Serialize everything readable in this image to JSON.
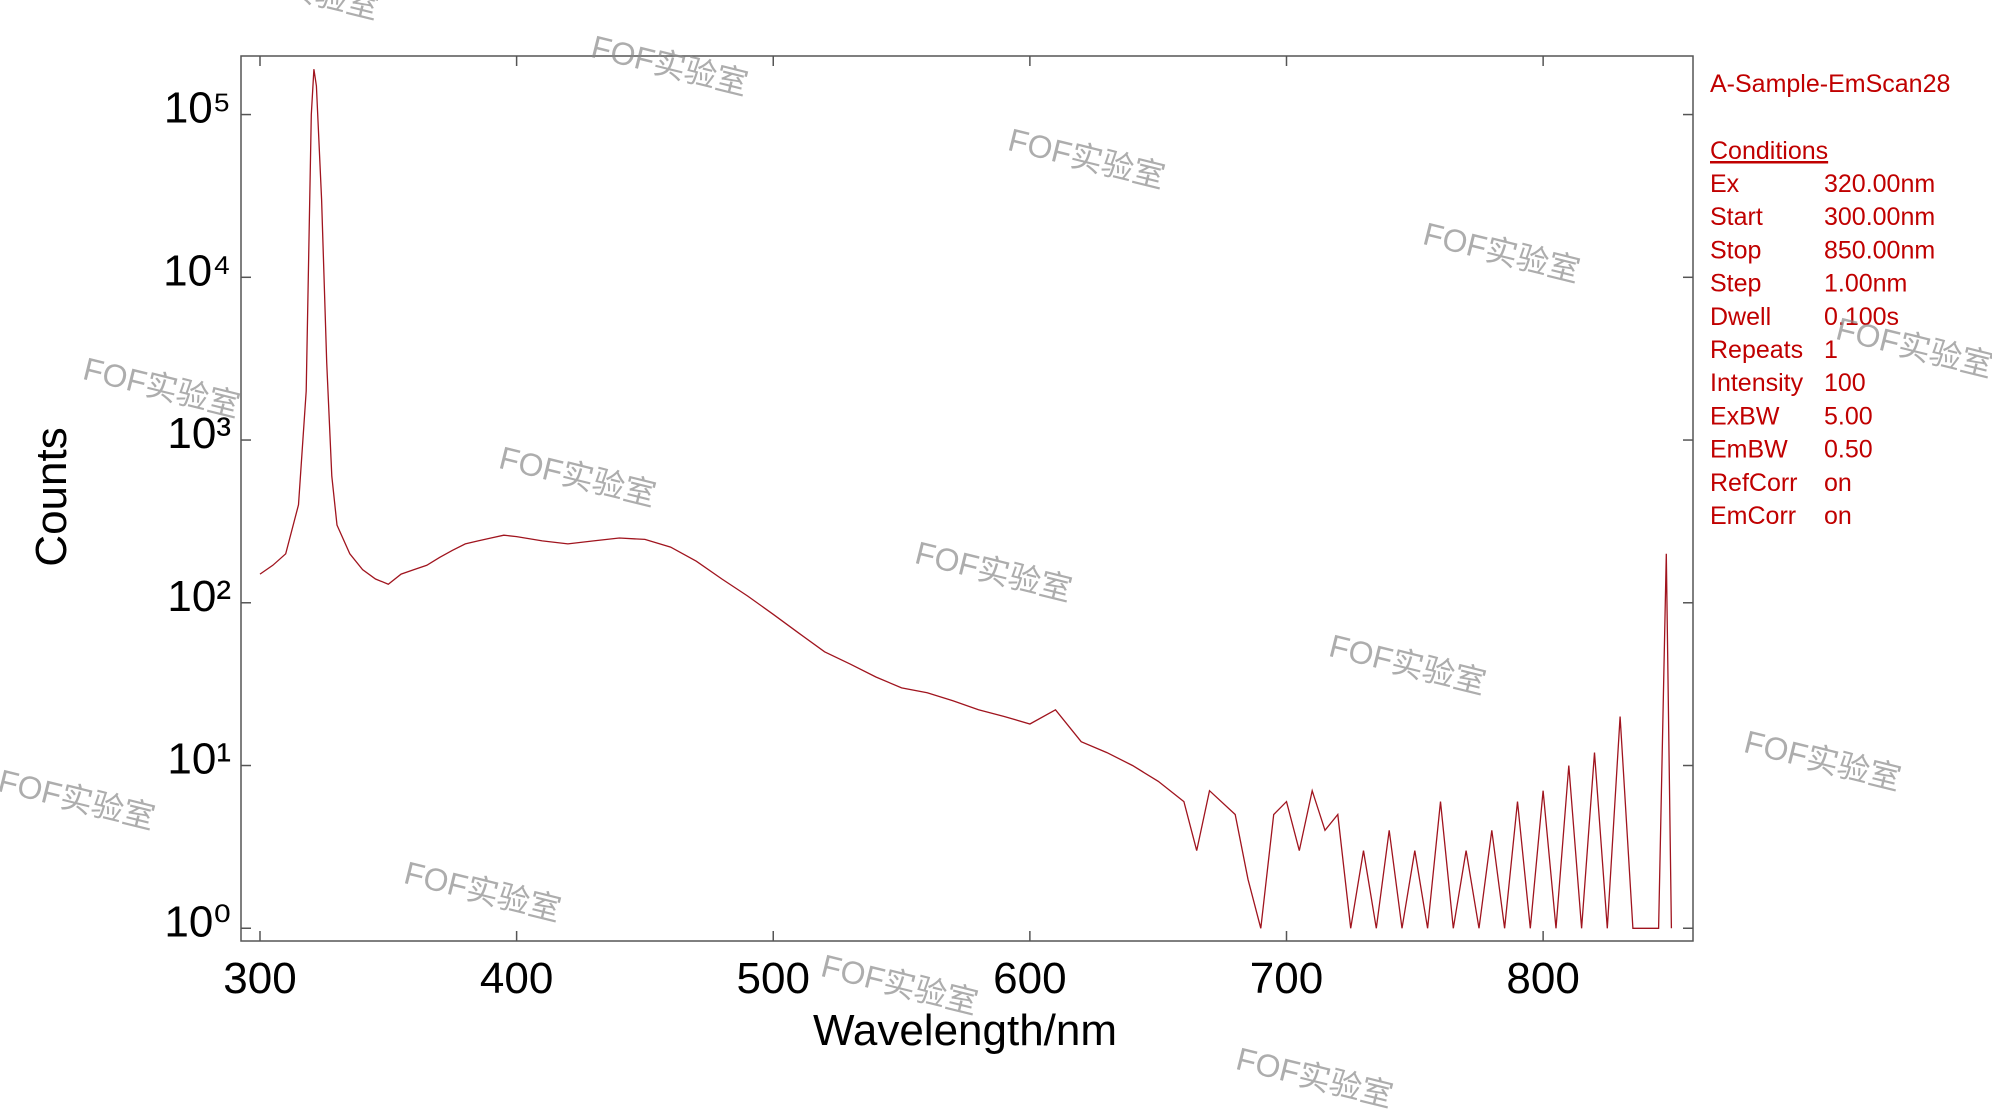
{
  "chart_data": {
    "type": "line",
    "xlabel": "Wavelength/nm",
    "ylabel": "Counts",
    "color": "#a0141e",
    "log_y": true,
    "xlim": [
      292.6,
      858.4
    ],
    "xticks": [
      300,
      400,
      500,
      600,
      700,
      800
    ],
    "ylim": [
      0.835,
      229000
    ],
    "yticks": [
      {
        "value": 1,
        "label": "10⁰"
      },
      {
        "value": 10,
        "label": "10¹"
      },
      {
        "value": 100,
        "label": "10²"
      },
      {
        "value": 1000,
        "label": "10³"
      },
      {
        "value": 10000,
        "label": "10⁴"
      },
      {
        "value": 100000,
        "label": "10⁵"
      }
    ],
    "x": [
      300,
      305,
      310,
      315,
      318,
      320,
      321,
      322,
      324,
      326,
      328,
      330,
      335,
      340,
      345,
      350,
      355,
      360,
      365,
      370,
      375,
      380,
      385,
      390,
      395,
      400,
      410,
      420,
      430,
      440,
      450,
      460,
      470,
      480,
      490,
      500,
      510,
      520,
      530,
      540,
      550,
      560,
      570,
      580,
      590,
      600,
      610,
      620,
      630,
      640,
      650,
      660,
      665,
      670,
      680,
      685,
      690,
      695,
      700,
      705,
      710,
      715,
      720,
      725,
      730,
      735,
      740,
      745,
      750,
      755,
      760,
      765,
      770,
      775,
      780,
      785,
      790,
      795,
      800,
      805,
      810,
      815,
      820,
      825,
      830,
      835,
      840,
      845,
      848,
      850
    ],
    "values": [
      150,
      170,
      200,
      400,
      2000,
      100000,
      190000,
      150000,
      30000,
      3000,
      600,
      300,
      200,
      160,
      140,
      130,
      150,
      160,
      170,
      190,
      210,
      230,
      240,
      250,
      260,
      255,
      240,
      230,
      240,
      250,
      245,
      220,
      180,
      140,
      110,
      85,
      65,
      50,
      42,
      35,
      30,
      28,
      25,
      22,
      20,
      18,
      22,
      14,
      12,
      10,
      8,
      6,
      3,
      7,
      5,
      2,
      1,
      5,
      6,
      3,
      7,
      4,
      5,
      1,
      3,
      1,
      4,
      1,
      3,
      1,
      6,
      1,
      3,
      1,
      4,
      1,
      6,
      1,
      7,
      1,
      10,
      1,
      12,
      1,
      20,
      1,
      1,
      1,
      200,
      1
    ]
  },
  "panel": {
    "title": "A-Sample-EmScan28",
    "heading": "Conditions",
    "rows": [
      [
        "Ex",
        "320.00nm"
      ],
      [
        "Start",
        "300.00nm"
      ],
      [
        "Stop",
        "850.00nm"
      ],
      [
        "Step",
        "1.00nm"
      ],
      [
        "Dwell",
        "0.100s"
      ],
      [
        "Repeats",
        "1"
      ],
      [
        "Intensity",
        "100"
      ],
      [
        "ExBW",
        "5.00"
      ],
      [
        "EmBW",
        "0.50"
      ],
      [
        "RefCorr",
        "on"
      ],
      [
        "EmCorr",
        "on"
      ]
    ]
  },
  "watermark": "FOF实验室"
}
